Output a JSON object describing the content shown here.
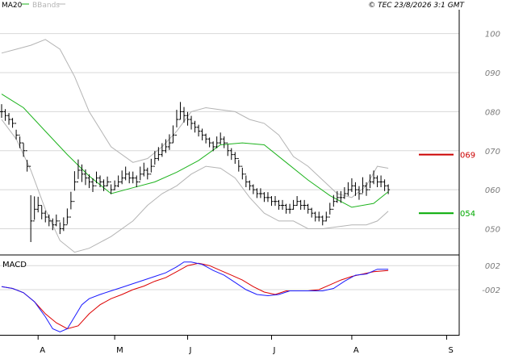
{
  "header": {
    "legend": [
      {
        "label": "MA20",
        "color": "#1db31d"
      },
      {
        "label": "BBands",
        "color": "#b4b4b4"
      }
    ],
    "copyright": "© TEC 23/8/2026 3:1 GMT"
  },
  "colors": {
    "price": "#000000",
    "ma": "#1db31d",
    "bbands": "#b4b4b4",
    "resistance": "#cc0000",
    "support": "#00aa00",
    "macd_line": "#1a1aff",
    "macd_signal": "#dd0000",
    "grid": "#d8d8d8"
  },
  "chart_data": [
    {
      "type": "line",
      "name": "price-panel",
      "y_tick_labels": [
        "100",
        "090",
        "080",
        "070",
        "060",
        "050"
      ],
      "y_ticks": [
        1.0,
        0.9,
        0.8,
        0.7,
        0.6,
        0.5
      ],
      "ylim": [
        0.435,
        1.055
      ],
      "x_tick_labels": [
        "A",
        "M",
        "J",
        "J",
        "A",
        "S"
      ],
      "x_tick_index": [
        10,
        31,
        51,
        74,
        96,
        122
      ],
      "xlim": [
        0,
        125
      ],
      "grid": true,
      "series": [
        {
          "id": "ohlc",
          "kind": "ohlc",
          "close": [
            0.8,
            0.79,
            0.78,
            0.77,
            0.74,
            0.72,
            0.7,
            0.66,
            0.52,
            0.55,
            0.56,
            0.54,
            0.53,
            0.52,
            0.51,
            0.52,
            0.5,
            0.51,
            0.53,
            0.57,
            0.62,
            0.65,
            0.64,
            0.63,
            0.62,
            0.61,
            0.63,
            0.62,
            0.61,
            0.62,
            0.6,
            0.61,
            0.62,
            0.63,
            0.64,
            0.63,
            0.63,
            0.62,
            0.64,
            0.65,
            0.64,
            0.66,
            0.68,
            0.69,
            0.7,
            0.71,
            0.72,
            0.74,
            0.78,
            0.8,
            0.79,
            0.78,
            0.77,
            0.76,
            0.75,
            0.74,
            0.73,
            0.72,
            0.71,
            0.72,
            0.73,
            0.72,
            0.7,
            0.69,
            0.68,
            0.66,
            0.64,
            0.62,
            0.61,
            0.6,
            0.59,
            0.59,
            0.58,
            0.58,
            0.57,
            0.57,
            0.56,
            0.56,
            0.55,
            0.55,
            0.56,
            0.57,
            0.56,
            0.56,
            0.55,
            0.54,
            0.53,
            0.53,
            0.52,
            0.53,
            0.55,
            0.57,
            0.58,
            0.58,
            0.59,
            0.6,
            0.61,
            0.6,
            0.59,
            0.61,
            0.6,
            0.62,
            0.63,
            0.62,
            0.62,
            0.61,
            0.6
          ],
          "range": [
            0.035,
            0.03,
            0.03,
            0.025,
            0.025,
            0.03,
            0.035,
            0.03,
            0.12,
            0.06,
            0.04,
            0.035,
            0.03,
            0.03,
            0.03,
            0.03,
            0.03,
            0.035,
            0.04,
            0.045,
            0.05,
            0.05,
            0.045,
            0.04,
            0.035,
            0.035,
            0.03,
            0.03,
            0.03,
            0.025,
            0.025,
            0.025,
            0.03,
            0.035,
            0.035,
            0.03,
            0.03,
            0.03,
            0.035,
            0.035,
            0.03,
            0.035,
            0.035,
            0.035,
            0.035,
            0.035,
            0.04,
            0.045,
            0.045,
            0.045,
            0.04,
            0.035,
            0.035,
            0.03,
            0.03,
            0.03,
            0.025,
            0.025,
            0.025,
            0.03,
            0.03,
            0.03,
            0.03,
            0.03,
            0.03,
            0.03,
            0.03,
            0.03,
            0.025,
            0.025,
            0.025,
            0.025,
            0.025,
            0.025,
            0.025,
            0.025,
            0.025,
            0.025,
            0.025,
            0.025,
            0.025,
            0.025,
            0.025,
            0.025,
            0.025,
            0.025,
            0.025,
            0.025,
            0.025,
            0.025,
            0.03,
            0.03,
            0.03,
            0.03,
            0.03,
            0.035,
            0.035,
            0.035,
            0.035,
            0.04,
            0.035,
            0.035,
            0.035,
            0.03,
            0.03,
            0.03,
            0.025
          ]
        },
        {
          "id": "ma20",
          "kind": "line",
          "x": [
            0,
            6,
            12,
            18,
            24,
            30,
            36,
            42,
            48,
            54,
            60,
            66,
            72,
            78,
            84,
            90,
            96,
            102,
            106
          ],
          "y": [
            0.845,
            0.81,
            0.75,
            0.69,
            0.635,
            0.59,
            0.605,
            0.62,
            0.645,
            0.675,
            0.715,
            0.72,
            0.715,
            0.67,
            0.625,
            0.585,
            0.555,
            0.565,
            0.595
          ]
        },
        {
          "id": "bb_upper",
          "kind": "line",
          "x": [
            0,
            4,
            8,
            12,
            16,
            20,
            24,
            30,
            36,
            40,
            44,
            48,
            52,
            56,
            60,
            64,
            68,
            72,
            76,
            80,
            84,
            88,
            92,
            96,
            100,
            103,
            106
          ],
          "y": [
            0.95,
            0.96,
            0.97,
            0.985,
            0.96,
            0.89,
            0.8,
            0.71,
            0.67,
            0.68,
            0.71,
            0.75,
            0.8,
            0.81,
            0.805,
            0.8,
            0.78,
            0.77,
            0.74,
            0.685,
            0.66,
            0.625,
            0.59,
            0.58,
            0.61,
            0.66,
            0.655
          ]
        },
        {
          "id": "bb_lower",
          "kind": "line",
          "x": [
            0,
            4,
            8,
            12,
            16,
            20,
            24,
            30,
            36,
            40,
            44,
            48,
            52,
            56,
            60,
            64,
            68,
            72,
            76,
            80,
            84,
            88,
            92,
            96,
            100,
            103,
            106
          ],
          "y": [
            0.78,
            0.73,
            0.65,
            0.55,
            0.47,
            0.44,
            0.45,
            0.48,
            0.52,
            0.56,
            0.59,
            0.61,
            0.64,
            0.66,
            0.655,
            0.63,
            0.58,
            0.54,
            0.52,
            0.52,
            0.5,
            0.5,
            0.505,
            0.51,
            0.51,
            0.52,
            0.545
          ]
        }
      ],
      "markers": [
        {
          "label": "069",
          "value": 0.69,
          "color": "#cc0000"
        },
        {
          "label": "054",
          "value": 0.54,
          "color": "#00aa00"
        }
      ]
    },
    {
      "type": "line",
      "name": "macd-panel",
      "title": "MACD",
      "y_tick_labels": [
        "002",
        "-002"
      ],
      "y_ticks": [
        0.02,
        -0.02
      ],
      "ylim": [
        -0.095,
        0.035
      ],
      "xlim": [
        0,
        125
      ],
      "grid": true,
      "series": [
        {
          "id": "macd",
          "kind": "line",
          "x": [
            0,
            3,
            6,
            9,
            12,
            14,
            16,
            18,
            20,
            22,
            24,
            27,
            30,
            33,
            36,
            39,
            42,
            45,
            48,
            50,
            52,
            55,
            58,
            61,
            64,
            67,
            70,
            73,
            76,
            79,
            82,
            85,
            88,
            91,
            94,
            97,
            100,
            103,
            106
          ],
          "y": [
            -0.015,
            -0.018,
            -0.025,
            -0.04,
            -0.065,
            -0.085,
            -0.09,
            -0.085,
            -0.065,
            -0.045,
            -0.035,
            -0.028,
            -0.022,
            -0.016,
            -0.01,
            -0.004,
            0.002,
            0.008,
            0.018,
            0.026,
            0.026,
            0.022,
            0.012,
            0.004,
            -0.008,
            -0.02,
            -0.028,
            -0.03,
            -0.028,
            -0.022,
            -0.022,
            -0.022,
            -0.022,
            -0.018,
            -0.006,
            0.004,
            0.006,
            0.014,
            0.014
          ]
        },
        {
          "id": "signal",
          "kind": "line",
          "x": [
            0,
            3,
            6,
            9,
            12,
            15,
            18,
            21,
            24,
            27,
            30,
            33,
            36,
            39,
            42,
            45,
            48,
            51,
            54,
            57,
            60,
            63,
            66,
            69,
            72,
            75,
            78,
            81,
            84,
            87,
            90,
            93,
            96,
            99,
            102,
            106
          ],
          "y": [
            -0.015,
            -0.018,
            -0.025,
            -0.04,
            -0.06,
            -0.075,
            -0.085,
            -0.08,
            -0.06,
            -0.045,
            -0.035,
            -0.028,
            -0.02,
            -0.014,
            -0.006,
            0.0,
            0.01,
            0.02,
            0.024,
            0.02,
            0.012,
            0.004,
            -0.004,
            -0.015,
            -0.024,
            -0.028,
            -0.022,
            -0.022,
            -0.022,
            -0.02,
            -0.012,
            -0.004,
            0.002,
            0.006,
            0.01,
            0.012
          ]
        }
      ]
    }
  ]
}
